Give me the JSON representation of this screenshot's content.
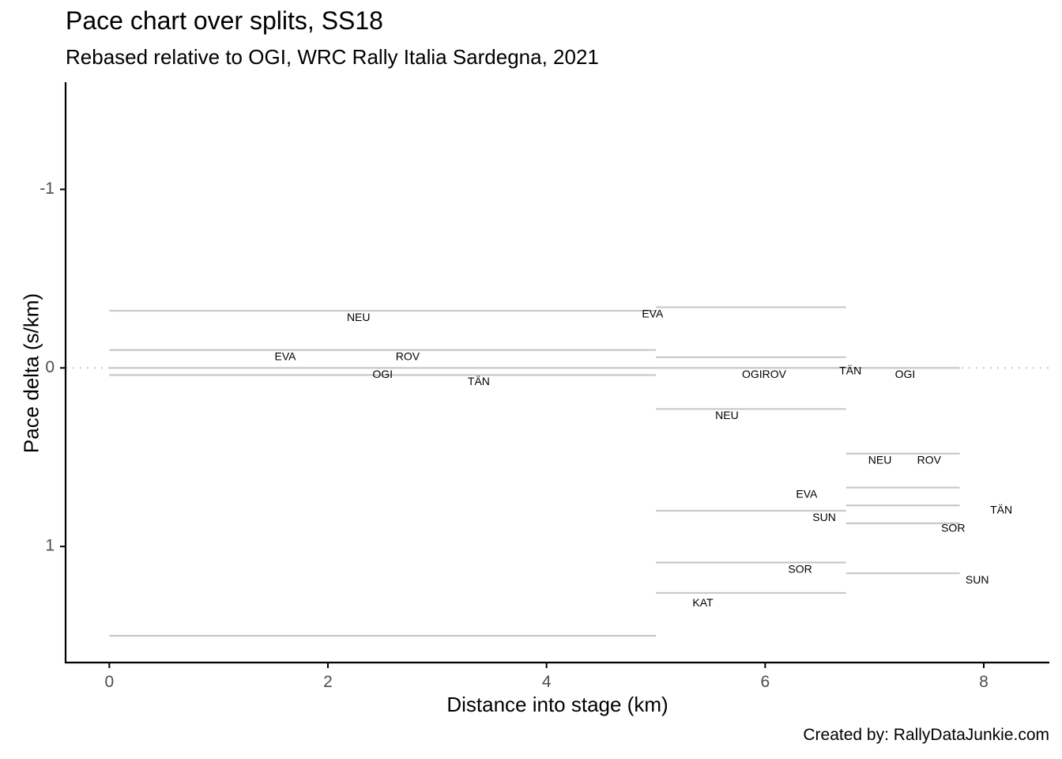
{
  "chart_data": {
    "type": "line",
    "title": "Pace chart over splits, SS18",
    "subtitle": "Rebased relative to OGI, WRC Rally Italia Sardegna, 2021",
    "caption": "Created by: RallyDataJunkie.com",
    "xlabel": "Distance into stage (km)",
    "ylabel": "Pace delta (s/km)",
    "xlim": [
      -0.4,
      8.6
    ],
    "ylim": [
      1.65,
      -1.6
    ],
    "y_reversed": true,
    "x_ticks": [
      0,
      2,
      4,
      6,
      8
    ],
    "x_tick_labels": [
      "0",
      "2",
      "4",
      "6",
      "8"
    ],
    "y_ticks": [
      -1,
      0,
      1
    ],
    "y_tick_labels": [
      "-1",
      "0",
      "1"
    ],
    "reference_line": 0,
    "grid": false,
    "segments": [
      {
        "x0": 0,
        "x1": 5.0,
        "y": -0.32
      },
      {
        "x0": 0,
        "x1": 5.0,
        "y": -0.1
      },
      {
        "x0": 0,
        "x1": 5.0,
        "y": 0.0
      },
      {
        "x0": 0,
        "x1": 5.0,
        "y": 0.04
      },
      {
        "x0": 0,
        "x1": 5.0,
        "y": 1.5
      },
      {
        "x0": 5.0,
        "x1": 6.74,
        "y": -0.34
      },
      {
        "x0": 5.0,
        "x1": 6.74,
        "y": -0.06
      },
      {
        "x0": 5.0,
        "x1": 6.74,
        "y": 0.0
      },
      {
        "x0": 5.0,
        "x1": 6.74,
        "y": 0.23
      },
      {
        "x0": 5.0,
        "x1": 6.74,
        "y": 0.8
      },
      {
        "x0": 5.0,
        "x1": 6.74,
        "y": 1.09
      },
      {
        "x0": 5.0,
        "x1": 6.74,
        "y": 1.26
      },
      {
        "x0": 6.74,
        "x1": 7.78,
        "y": 0.0
      },
      {
        "x0": 6.74,
        "x1": 7.78,
        "y": 0.48
      },
      {
        "x0": 6.74,
        "x1": 7.78,
        "y": 0.67
      },
      {
        "x0": 6.74,
        "x1": 7.78,
        "y": 0.77
      },
      {
        "x0": 6.74,
        "x1": 7.78,
        "y": 0.87
      },
      {
        "x0": 6.74,
        "x1": 7.78,
        "y": 1.15
      }
    ],
    "labels": [
      {
        "text": "NEU",
        "x": 2.28,
        "y": -0.28
      },
      {
        "text": "EVA",
        "x": 1.61,
        "y": -0.06
      },
      {
        "text": "ROV",
        "x": 2.73,
        "y": -0.06
      },
      {
        "text": "OGI",
        "x": 2.5,
        "y": 0.04
      },
      {
        "text": "TÄN",
        "x": 3.38,
        "y": 0.08
      },
      {
        "text": "EVA",
        "x": 4.97,
        "y": -0.3
      },
      {
        "text": "TÄN",
        "x": 6.78,
        "y": 0.02
      },
      {
        "text": "OGIROV",
        "x": 5.99,
        "y": 0.04
      },
      {
        "text": "OGI",
        "x": 7.28,
        "y": 0.04
      },
      {
        "text": "NEU",
        "x": 5.65,
        "y": 0.27
      },
      {
        "text": "NEU",
        "x": 7.05,
        "y": 0.52
      },
      {
        "text": "ROV",
        "x": 7.5,
        "y": 0.52
      },
      {
        "text": "EVA",
        "x": 6.38,
        "y": 0.71
      },
      {
        "text": "SUN",
        "x": 6.54,
        "y": 0.84
      },
      {
        "text": "TÄN",
        "x": 8.16,
        "y": 0.8
      },
      {
        "text": "SOR",
        "x": 7.72,
        "y": 0.9
      },
      {
        "text": "SOR",
        "x": 6.32,
        "y": 1.13
      },
      {
        "text": "SUN",
        "x": 7.94,
        "y": 1.19
      },
      {
        "text": "KAT",
        "x": 5.43,
        "y": 1.32
      }
    ],
    "colors": {
      "segment": "#c8c8c8",
      "reference": "#c8c8c8",
      "axis": "#000000",
      "tick_label": "#4d4d4d"
    }
  }
}
